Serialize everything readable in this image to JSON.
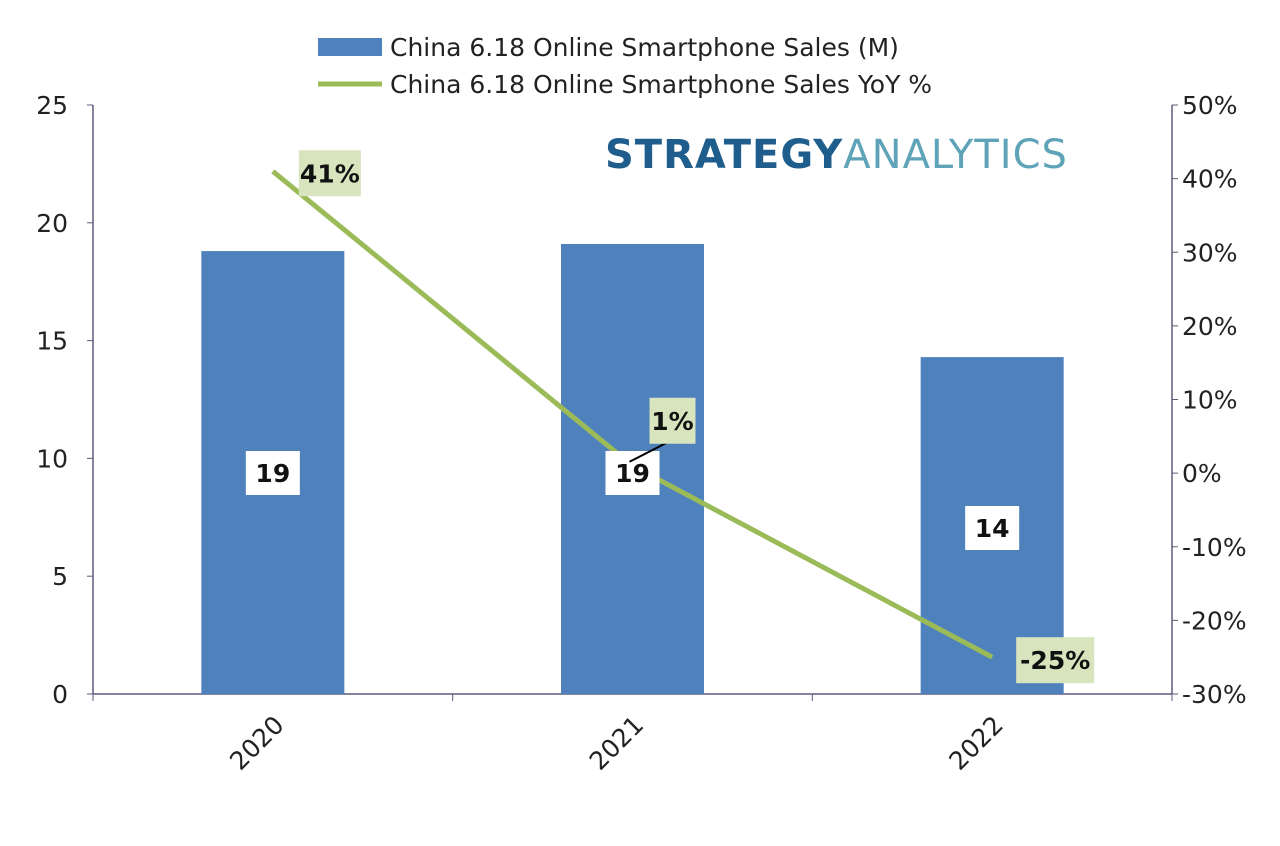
{
  "chart_data": {
    "type": "bar+line",
    "categories": [
      "2020",
      "2021",
      "2022"
    ],
    "series": [
      {
        "name": "China 6.18 Online Smartphone Sales (M)",
        "type": "bar",
        "axis": "left",
        "values": [
          18.8,
          19.1,
          14.3
        ],
        "data_labels": [
          "19",
          "19",
          "14"
        ],
        "color": "#4F81BD"
      },
      {
        "name": "China 6.18 Online Smartphone Sales YoY %",
        "type": "line",
        "axis": "right",
        "values": [
          41,
          1,
          -25
        ],
        "data_labels": [
          "41%",
          "1%",
          "-25%"
        ],
        "color": "#9BBB59"
      }
    ],
    "y_left": {
      "ylim": [
        0,
        25
      ],
      "ticks": [
        "0",
        "5",
        "10",
        "15",
        "20",
        "25"
      ]
    },
    "y_right": {
      "ylim": [
        -30,
        50
      ],
      "ticks": [
        "-30%",
        "-20%",
        "-10%",
        "0%",
        "10%",
        "20%",
        "30%",
        "40%",
        "50%"
      ]
    },
    "legend_position": "top",
    "grid": false
  },
  "watermark": {
    "part1": "STRATEGY",
    "part2": "ANALYTICS",
    "color1": "#1F5E8C",
    "color2": "#5FA3B8"
  },
  "label_bg": "#D7E4BD"
}
